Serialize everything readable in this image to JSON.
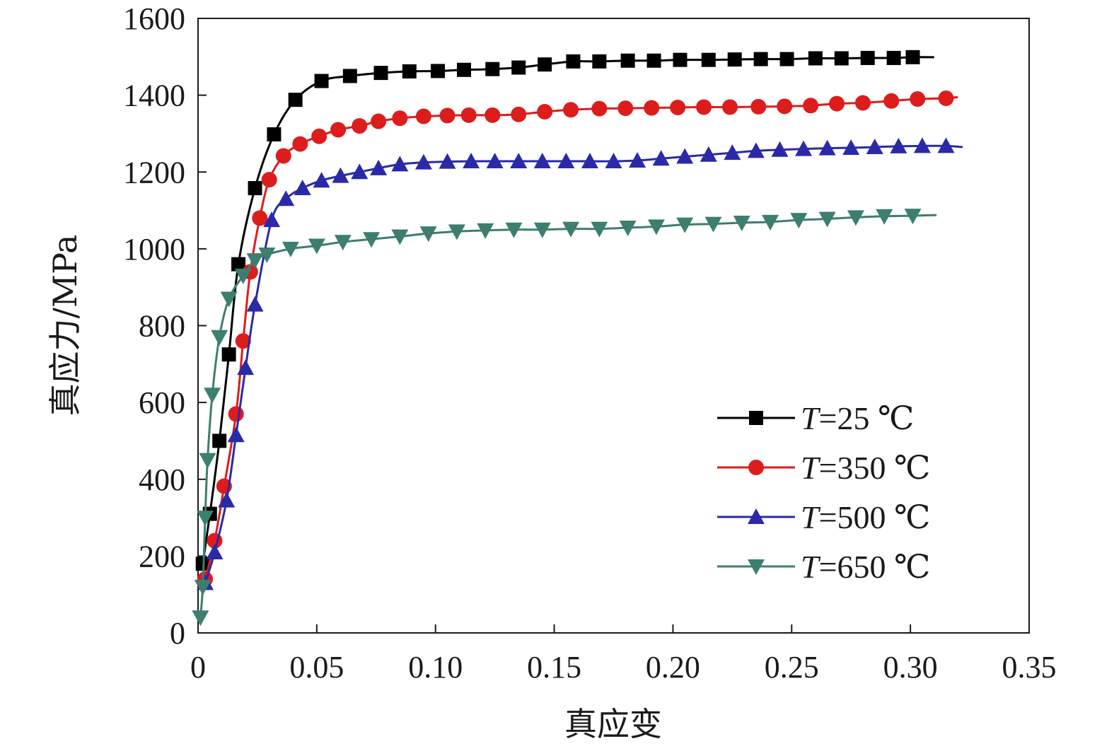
{
  "chart_data": {
    "type": "line",
    "title": "",
    "xlabel": "真应变",
    "ylabel": "真应力/MPa",
    "xlim": [
      0,
      0.35
    ],
    "ylim": [
      0,
      1600
    ],
    "x_ticks": [
      0,
      0.05,
      0.1,
      0.15,
      0.2,
      0.25,
      0.3,
      0.35
    ],
    "x_tick_labels": [
      "0",
      "0.05",
      "0.10",
      "0.15",
      "0.20",
      "0.25",
      "0.30",
      "0.35"
    ],
    "y_ticks": [
      0,
      200,
      400,
      600,
      800,
      1000,
      1200,
      1400,
      1600
    ],
    "y_tick_labels": [
      "0",
      "200",
      "400",
      "600",
      "800",
      "1000",
      "1200",
      "1400",
      "1600"
    ],
    "grid": false,
    "legend_position": "bottom-right",
    "series": [
      {
        "legend_var": "T",
        "legend_rest": "=25 ℃",
        "color": "#000000",
        "marker": "square",
        "x": [
          0.002,
          0.005,
          0.009,
          0.013,
          0.017,
          0.024,
          0.032,
          0.041,
          0.052,
          0.064,
          0.077,
          0.089,
          0.101,
          0.112,
          0.124,
          0.135,
          0.146,
          0.158,
          0.169,
          0.181,
          0.192,
          0.203,
          0.215,
          0.226,
          0.237,
          0.248,
          0.26,
          0.271,
          0.282,
          0.293,
          0.301,
          0.31
        ],
        "y": [
          180,
          310,
          500,
          725,
          960,
          1158,
          1298,
          1388,
          1437,
          1450,
          1458,
          1462,
          1463,
          1466,
          1468,
          1472,
          1480,
          1488,
          1488,
          1490,
          1490,
          1492,
          1492,
          1493,
          1494,
          1494,
          1496,
          1496,
          1497,
          1497,
          1499,
          1499
        ],
        "marker_count": 31
      },
      {
        "legend_var": "T",
        "legend_rest": "=350 ℃",
        "color": "#dd1c1c",
        "marker": "circle",
        "x": [
          0.003,
          0.007,
          0.011,
          0.016,
          0.019,
          0.022,
          0.026,
          0.03,
          0.036,
          0.043,
          0.051,
          0.059,
          0.068,
          0.076,
          0.085,
          0.095,
          0.105,
          0.114,
          0.124,
          0.135,
          0.146,
          0.157,
          0.169,
          0.18,
          0.191,
          0.202,
          0.213,
          0.224,
          0.236,
          0.247,
          0.258,
          0.269,
          0.28,
          0.292,
          0.303,
          0.315,
          0.32
        ],
        "y": [
          140,
          240,
          382,
          570,
          760,
          940,
          1080,
          1180,
          1242,
          1273,
          1293,
          1310,
          1320,
          1332,
          1340,
          1345,
          1347,
          1348,
          1348,
          1350,
          1357,
          1362,
          1365,
          1366,
          1367,
          1368,
          1369,
          1369,
          1370,
          1371,
          1373,
          1378,
          1380,
          1385,
          1390,
          1392,
          1395
        ],
        "marker_count": 36
      },
      {
        "legend_var": "T",
        "legend_rest": "=500 ℃",
        "color": "#2a2aa8",
        "marker": "triangle-up",
        "x": [
          0.003,
          0.007,
          0.012,
          0.016,
          0.02,
          0.024,
          0.031,
          0.037,
          0.044,
          0.052,
          0.06,
          0.068,
          0.076,
          0.085,
          0.095,
          0.105,
          0.115,
          0.125,
          0.135,
          0.145,
          0.155,
          0.165,
          0.175,
          0.185,
          0.195,
          0.205,
          0.215,
          0.225,
          0.235,
          0.245,
          0.255,
          0.265,
          0.275,
          0.285,
          0.295,
          0.305,
          0.315,
          0.322
        ],
        "y": [
          130,
          210,
          345,
          515,
          690,
          855,
          1075,
          1130,
          1158,
          1178,
          1190,
          1200,
          1210,
          1220,
          1225,
          1227,
          1228,
          1228,
          1228,
          1228,
          1228,
          1228,
          1228,
          1230,
          1235,
          1240,
          1245,
          1250,
          1255,
          1258,
          1260,
          1262,
          1263,
          1265,
          1267,
          1268,
          1268,
          1265
        ],
        "marker_count": 37
      },
      {
        "legend_var": "T",
        "legend_rest": "=650 ℃",
        "color": "#3d7e6e",
        "marker": "triangle-down",
        "x": [
          0.001,
          0.002,
          0.003,
          0.004,
          0.006,
          0.009,
          0.013,
          0.019,
          0.024,
          0.029,
          0.039,
          0.05,
          0.061,
          0.073,
          0.085,
          0.097,
          0.109,
          0.121,
          0.133,
          0.145,
          0.157,
          0.169,
          0.181,
          0.193,
          0.205,
          0.217,
          0.229,
          0.241,
          0.253,
          0.265,
          0.277,
          0.289,
          0.301,
          0.311
        ],
        "y": [
          40,
          120,
          300,
          450,
          620,
          770,
          870,
          930,
          970,
          985,
          1000,
          1008,
          1018,
          1025,
          1032,
          1040,
          1045,
          1048,
          1050,
          1050,
          1052,
          1052,
          1055,
          1058,
          1063,
          1065,
          1068,
          1070,
          1075,
          1078,
          1082,
          1085,
          1086,
          1088
        ],
        "marker_count": 33
      }
    ]
  }
}
